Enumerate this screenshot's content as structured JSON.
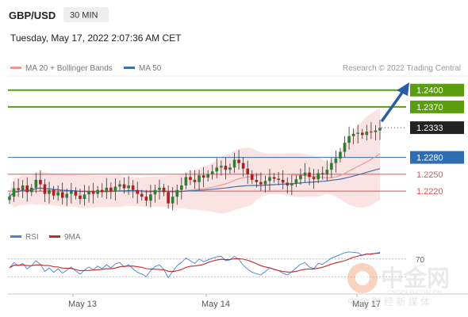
{
  "header": {
    "symbol": "GBP/USD",
    "timeframe": "30 MIN",
    "timestamp": "Tuesday, May 17, 2022 2:07:36 AM CET"
  },
  "legend": {
    "ma20_label": "MA 20 + Bollinger Bands",
    "ma50_label": "MA 50",
    "credit": "Research © 2022 Trading Central",
    "rsi_label": "RSI",
    "rsi_ma_label": "9MA"
  },
  "watermark": {
    "cn_text": "中金网",
    "domain": "CNGOLD.COM.CN",
    "tagline": "中 金 财 经 新 媒 体"
  },
  "colors": {
    "target_green": "#5a9e0f",
    "current_price_box": "#222222",
    "pivot_blue": "#2f6db3",
    "support_red": "#e05252",
    "ma20": "#e79a9a",
    "ma50": "#3f6fa8",
    "bollinger_fill": "#f9dcdc",
    "rsi": "#4a7fd1",
    "rsi_ma": "#c62828",
    "arrow": "#2a5d9f",
    "candle_up": "#2e7d32",
    "candle_down": "#b71c1c"
  },
  "chart_data": {
    "type": "line",
    "instrument": "GBP/USD",
    "interval": "30 MIN",
    "x_tick_labels": [
      "May 13",
      "May 14",
      "May 17"
    ],
    "ylim": [
      1.2165,
      1.2425
    ],
    "levels": [
      {
        "price": 1.24,
        "label": "1.2400",
        "style": "target"
      },
      {
        "price": 1.237,
        "label": "1.2370",
        "style": "target"
      },
      {
        "price": 1.2333,
        "label": "1.2333",
        "style": "current"
      },
      {
        "price": 1.228,
        "label": "1.2280",
        "style": "pivot"
      },
      {
        "price": 1.225,
        "label": "1.2250",
        "style": "support"
      },
      {
        "price": 1.222,
        "label": "1.2220",
        "style": "support"
      }
    ],
    "price_series": [
      1.221,
      1.2225,
      1.2222,
      1.223,
      1.2218,
      1.2226,
      1.224,
      1.2232,
      1.2215,
      1.2222,
      1.2212,
      1.2218,
      1.2208,
      1.2215,
      1.222,
      1.2212,
      1.2206,
      1.2214,
      1.222,
      1.2215,
      1.2222,
      1.2218,
      1.2226,
      1.222,
      1.2228,
      1.2232,
      1.2225,
      1.223,
      1.2222,
      1.2215,
      1.221,
      1.2203,
      1.2214,
      1.2222,
      1.2226,
      1.2218,
      1.2198,
      1.221,
      1.2222,
      1.223,
      1.2245,
      1.224,
      1.2236,
      1.2248,
      1.2244,
      1.225,
      1.2255,
      1.2262,
      1.2265,
      1.2258,
      1.2262,
      1.2276,
      1.227,
      1.226,
      1.225,
      1.224,
      1.2236,
      1.2232,
      1.2238,
      1.2245,
      1.2242,
      1.224,
      1.2235,
      1.223,
      1.2234,
      1.2241,
      1.2248,
      1.2253,
      1.2245,
      1.2241,
      1.2252,
      1.225,
      1.2258,
      1.227,
      1.2278,
      1.229,
      1.2306,
      1.2318,
      1.2322,
      1.2324,
      1.232,
      1.2326,
      1.2325,
      1.2328,
      1.2333
    ],
    "rsi": {
      "ylim": [
        0,
        100
      ],
      "tick_labels": [
        "70"
      ],
      "values": [
        50,
        62,
        55,
        60,
        48,
        55,
        66,
        58,
        42,
        50,
        40,
        48,
        38,
        45,
        52,
        43,
        36,
        45,
        52,
        46,
        54,
        48,
        57,
        50,
        59,
        62,
        52,
        57,
        48,
        40,
        36,
        30,
        44,
        53,
        57,
        46,
        28,
        42,
        55,
        62,
        72,
        66,
        60,
        70,
        64,
        68,
        72,
        75,
        76,
        66,
        68,
        76,
        69,
        56,
        47,
        40,
        37,
        34,
        42,
        50,
        46,
        44,
        38,
        34,
        41,
        50,
        58,
        62,
        52,
        48,
        60,
        58,
        65,
        72,
        76,
        80,
        84,
        86,
        85,
        84,
        78,
        82,
        80,
        83,
        85
      ]
    }
  }
}
